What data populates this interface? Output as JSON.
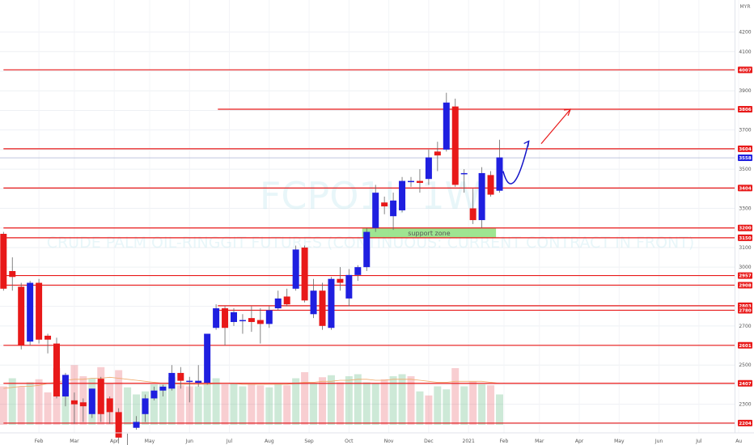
{
  "chart_data": {
    "type": "candlestick",
    "currency": "MYR",
    "watermark": {
      "symbol": "FCPO1!, 1W",
      "name": "CRUDE PALM OIL-RINGGIT FUTURES (CONTINUOUS: CURRENT CONTRACT IN FRONT)"
    },
    "ylim": [
      2150,
      4380
    ],
    "y_ticks": [
      2200,
      2300,
      2400,
      2500,
      2600,
      2700,
      2800,
      2900,
      3000,
      3100,
      3200,
      3300,
      3400,
      3500,
      3600,
      3700,
      3800,
      3900,
      4000,
      4100,
      4200
    ],
    "x_tick_labels": [
      {
        "label": "Feb",
        "week": 4
      },
      {
        "label": "Mar",
        "week": 8
      },
      {
        "label": "Apr",
        "week": 12.5
      },
      {
        "label": "May",
        "week": 16.5
      },
      {
        "label": "Jun",
        "week": 21
      },
      {
        "label": "Jul",
        "week": 25.5
      },
      {
        "label": "Aug",
        "week": 30
      },
      {
        "label": "Sep",
        "week": 34.5
      },
      {
        "label": "Oct",
        "week": 39
      },
      {
        "label": "Nov",
        "week": 43.5
      },
      {
        "label": "Dec",
        "week": 48
      },
      {
        "label": "2021",
        "week": 52.5
      },
      {
        "label": "Feb",
        "week": 56.5
      },
      {
        "label": "Mar",
        "week": 60.5
      },
      {
        "label": "Apr",
        "week": 65
      },
      {
        "label": "May",
        "week": 69.5
      },
      {
        "label": "Jun",
        "week": 74
      },
      {
        "label": "Jul",
        "week": 78.5
      },
      {
        "label": "Au",
        "week": 83
      }
    ],
    "bull_color": "#1f1fe0",
    "bear_color": "#e81919",
    "candles": [
      {
        "o": 3170,
        "h": 3180,
        "c": 2890,
        "l": 2880
      },
      {
        "o": 2980,
        "h": 3050,
        "c": 2950,
        "l": 2880
      },
      {
        "o": 2900,
        "h": 2920,
        "c": 2600,
        "l": 2580
      },
      {
        "o": 2620,
        "h": 2930,
        "c": 2920,
        "l": 2600
      },
      {
        "o": 2920,
        "h": 2940,
        "c": 2630,
        "l": 2610
      },
      {
        "o": 2650,
        "h": 2660,
        "c": 2630,
        "l": 2560
      },
      {
        "o": 2610,
        "h": 2640,
        "c": 2340,
        "l": 2330
      },
      {
        "o": 2340,
        "h": 2460,
        "c": 2450,
        "l": 2290
      },
      {
        "o": 2320,
        "h": 2360,
        "c": 2300,
        "l": 2200
      },
      {
        "o": 2310,
        "h": 2330,
        "c": 2290,
        "l": 2210
      },
      {
        "o": 2250,
        "h": 2380,
        "c": 2380,
        "l": 2230
      },
      {
        "o": 2430,
        "h": 2440,
        "c": 2250,
        "l": 2210
      },
      {
        "o": 2330,
        "h": 2340,
        "c": 2260,
        "l": 2200
      },
      {
        "o": 2260,
        "h": 2280,
        "c": 2130,
        "l": 2100
      },
      {
        "o": 2050,
        "h": 2150,
        "c": 2050,
        "l": 2040
      },
      {
        "o": 2180,
        "h": 2240,
        "c": 2210,
        "l": 2170
      },
      {
        "o": 2250,
        "h": 2350,
        "c": 2330,
        "l": 2210
      },
      {
        "o": 2330,
        "h": 2390,
        "c": 2370,
        "l": 2320
      },
      {
        "o": 2370,
        "h": 2400,
        "c": 2390,
        "l": 2340
      },
      {
        "o": 2380,
        "h": 2500,
        "c": 2460,
        "l": 2370
      },
      {
        "o": 2460,
        "h": 2490,
        "c": 2420,
        "l": 2380
      },
      {
        "o": 2420,
        "h": 2440,
        "c": 2420,
        "l": 2310
      },
      {
        "o": 2410,
        "h": 2500,
        "c": 2420,
        "l": 2390
      },
      {
        "o": 2410,
        "h": 2660,
        "c": 2660,
        "l": 2400
      },
      {
        "o": 2690,
        "h": 2810,
        "c": 2790,
        "l": 2680
      },
      {
        "o": 2790,
        "h": 2800,
        "c": 2690,
        "l": 2600
      },
      {
        "o": 2720,
        "h": 2790,
        "c": 2770,
        "l": 2700
      },
      {
        "o": 2730,
        "h": 2760,
        "c": 2730,
        "l": 2660
      },
      {
        "o": 2740,
        "h": 2800,
        "c": 2720,
        "l": 2670
      },
      {
        "o": 2730,
        "h": 2790,
        "c": 2710,
        "l": 2610
      },
      {
        "o": 2710,
        "h": 2800,
        "c": 2780,
        "l": 2690
      },
      {
        "o": 2790,
        "h": 2880,
        "c": 2840,
        "l": 2780
      },
      {
        "o": 2850,
        "h": 2890,
        "c": 2810,
        "l": 2800
      },
      {
        "o": 2890,
        "h": 3110,
        "c": 3090,
        "l": 2880
      },
      {
        "o": 3100,
        "h": 3110,
        "c": 2830,
        "l": 2820
      },
      {
        "o": 2760,
        "h": 2940,
        "c": 2880,
        "l": 2740
      },
      {
        "o": 2880,
        "h": 2920,
        "c": 2700,
        "l": 2680
      },
      {
        "o": 2690,
        "h": 2950,
        "c": 2940,
        "l": 2680
      },
      {
        "o": 2940,
        "h": 3000,
        "c": 2920,
        "l": 2880
      },
      {
        "o": 2840,
        "h": 2990,
        "c": 2960,
        "l": 2800
      },
      {
        "o": 2960,
        "h": 3010,
        "c": 3000,
        "l": 2930
      },
      {
        "o": 3000,
        "h": 3200,
        "c": 3180,
        "l": 2980
      },
      {
        "o": 3200,
        "h": 3420,
        "c": 3380,
        "l": 3180
      },
      {
        "o": 3330,
        "h": 3360,
        "c": 3310,
        "l": 3270
      },
      {
        "o": 3260,
        "h": 3380,
        "c": 3340,
        "l": 3190
      },
      {
        "o": 3290,
        "h": 3460,
        "c": 3440,
        "l": 3280
      },
      {
        "o": 3440,
        "h": 3460,
        "c": 3440,
        "l": 3410
      },
      {
        "o": 3440,
        "h": 3500,
        "c": 3430,
        "l": 3380
      },
      {
        "o": 3450,
        "h": 3600,
        "c": 3560,
        "l": 3420
      },
      {
        "o": 3590,
        "h": 3640,
        "c": 3570,
        "l": 3490
      },
      {
        "o": 3600,
        "h": 3890,
        "c": 3840,
        "l": 3590
      },
      {
        "o": 3820,
        "h": 3860,
        "c": 3420,
        "l": 3410
      },
      {
        "o": 3480,
        "h": 3500,
        "c": 3480,
        "l": 3380
      },
      {
        "o": 3300,
        "h": 3400,
        "c": 3240,
        "l": 3220
      },
      {
        "o": 3240,
        "h": 3510,
        "c": 3480,
        "l": 3200
      },
      {
        "o": 3470,
        "h": 3490,
        "c": 3370,
        "l": 3360
      },
      {
        "o": 3390,
        "h": 3650,
        "c": 3560,
        "l": 3380
      }
    ],
    "volume_scale_max": 1000,
    "volumes": [
      {
        "v": 380,
        "up": false
      },
      {
        "v": 460,
        "up": true
      },
      {
        "v": 380,
        "up": false
      },
      {
        "v": 420,
        "up": true
      },
      {
        "v": 450,
        "up": false
      },
      {
        "v": 320,
        "up": false
      },
      {
        "v": 560,
        "up": false
      },
      {
        "v": 420,
        "up": true
      },
      {
        "v": 590,
        "up": false
      },
      {
        "v": 480,
        "up": false
      },
      {
        "v": 460,
        "up": true
      },
      {
        "v": 570,
        "up": false
      },
      {
        "v": 410,
        "up": false
      },
      {
        "v": 540,
        "up": false
      },
      {
        "v": 370,
        "up": true
      },
      {
        "v": 300,
        "up": true
      },
      {
        "v": 330,
        "up": true
      },
      {
        "v": 400,
        "up": true
      },
      {
        "v": 400,
        "up": true
      },
      {
        "v": 470,
        "up": true
      },
      {
        "v": 390,
        "up": false
      },
      {
        "v": 380,
        "up": false
      },
      {
        "v": 380,
        "up": true
      },
      {
        "v": 400,
        "up": true
      },
      {
        "v": 460,
        "up": true
      },
      {
        "v": 400,
        "up": false
      },
      {
        "v": 410,
        "up": true
      },
      {
        "v": 380,
        "up": true
      },
      {
        "v": 400,
        "up": false
      },
      {
        "v": 390,
        "up": false
      },
      {
        "v": 370,
        "up": true
      },
      {
        "v": 400,
        "up": true
      },
      {
        "v": 390,
        "up": false
      },
      {
        "v": 460,
        "up": true
      },
      {
        "v": 520,
        "up": false
      },
      {
        "v": 410,
        "up": true
      },
      {
        "v": 470,
        "up": false
      },
      {
        "v": 490,
        "up": true
      },
      {
        "v": 420,
        "up": false
      },
      {
        "v": 480,
        "up": true
      },
      {
        "v": 500,
        "up": true
      },
      {
        "v": 420,
        "up": true
      },
      {
        "v": 410,
        "up": true
      },
      {
        "v": 450,
        "up": false
      },
      {
        "v": 480,
        "up": true
      },
      {
        "v": 500,
        "up": true
      },
      {
        "v": 480,
        "up": false
      },
      {
        "v": 330,
        "up": true
      },
      {
        "v": 290,
        "up": false
      },
      {
        "v": 380,
        "up": true
      },
      {
        "v": 350,
        "up": true
      },
      {
        "v": 560,
        "up": false
      },
      {
        "v": 380,
        "up": true
      },
      {
        "v": 430,
        "up": false
      },
      {
        "v": 400,
        "up": true
      },
      {
        "v": 390,
        "up": false
      },
      {
        "v": 300,
        "up": true
      }
    ],
    "volume_ma": [
      360,
      370,
      380,
      380,
      390,
      410,
      420,
      440,
      450,
      450,
      460,
      460,
      470,
      460,
      450,
      440,
      430,
      420,
      410,
      410,
      400,
      400,
      400,
      400,
      410,
      410,
      410,
      400,
      400,
      400,
      400,
      400,
      400,
      410,
      420,
      420,
      430,
      430,
      440,
      440,
      450,
      450,
      440,
      440,
      450,
      450,
      450,
      440,
      430,
      420,
      420,
      430,
      430,
      430,
      430,
      420,
      410
    ],
    "levels": [
      {
        "price": 4007,
        "label": "4007",
        "from_week": 0
      },
      {
        "price": 3806,
        "label": "3806",
        "from_week": 24.2
      },
      {
        "price": 3604,
        "label": "3604",
        "from_week": 0
      },
      {
        "price": 3404,
        "label": "3404",
        "from_week": 0
      },
      {
        "price": 3200,
        "label": "3200",
        "from_week": 0
      },
      {
        "price": 3150,
        "label": "3150",
        "from_week": 0
      },
      {
        "price": 2957,
        "label": "2957",
        "from_week": 0
      },
      {
        "price": 2908,
        "label": "2908",
        "from_week": 0
      },
      {
        "price": 2803,
        "label": "2803",
        "from_week": 24.2
      },
      {
        "price": 2780,
        "label": "2780",
        "from_week": 24.2
      },
      {
        "price": 2601,
        "label": "2601",
        "from_week": 0
      },
      {
        "price": 2407,
        "label": "2407",
        "from_week": 0
      },
      {
        "price": 2204,
        "label": "2204",
        "from_week": 0
      }
    ],
    "current_price": {
      "value": 3558,
      "label": "3558"
    },
    "support_zone": {
      "label": "support zone",
      "from_week": 40.5,
      "to_week": 55.6,
      "y_low": 3150,
      "y_high": 3200
    },
    "projection_curve": [
      [
        56.4,
        3490
      ],
      [
        57.5,
        3390
      ],
      [
        59.3,
        3540
      ]
    ],
    "projection_arrow": [
      [
        60.7,
        3630
      ],
      [
        64.0,
        3806
      ]
    ],
    "projection_color": "#1414c8",
    "projection_arrow_color": "#e81919"
  }
}
